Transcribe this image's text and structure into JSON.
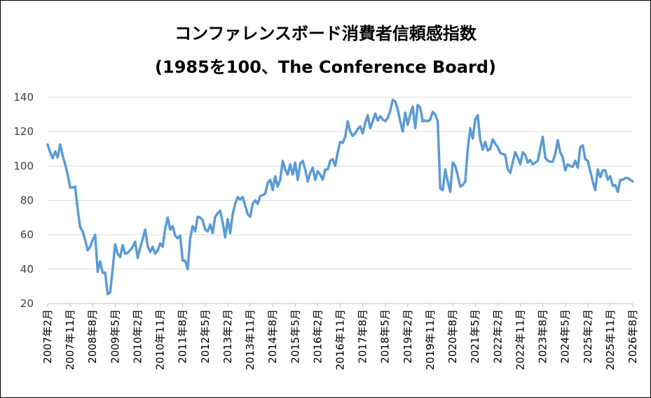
{
  "chart_data": {
    "type": "line",
    "title": "コンファレンスボード消費者信頼感指数",
    "subtitle": "(1985を100、The Conference Board)",
    "ylim": [
      20,
      140
    ],
    "yticks": [
      20,
      40,
      60,
      80,
      100,
      120,
      140
    ],
    "grid": true,
    "line_color": "#5B9BD5",
    "xtick_labels": [
      "2007年2月",
      "2007年11月",
      "2008年8月",
      "2009年5月",
      "2010年2月",
      "2010年11月",
      "2011年8月",
      "2012年5月",
      "2013年2月",
      "2013年11月",
      "2014年8月",
      "2015年5月",
      "2016年2月",
      "2016年11月",
      "2017年8月",
      "2018年5月",
      "2019年2月",
      "2019年11月",
      "2020年8月",
      "2021年5月",
      "2022年2月",
      "2022年11月",
      "2023年8月",
      "2024年5月",
      "2025年2月",
      "2025年11月",
      "2026年8月"
    ],
    "values": [
      112.5,
      108,
      104.5,
      108.5,
      105,
      112.5,
      106,
      101,
      95,
      87.5,
      87.5,
      88,
      75,
      64.5,
      62,
      57,
      51,
      53,
      57,
      60,
      38.5,
      44.5,
      38,
      38,
      25.5,
      26.5,
      40,
      54.5,
      49,
      47,
      54,
      49,
      49.5,
      51,
      53,
      56,
      46.5,
      52.5,
      57.5,
      63,
      53.5,
      50,
      53,
      49,
      51,
      55,
      53,
      63.5,
      70,
      63,
      65,
      59.5,
      58,
      59.5,
      45,
      45,
      40,
      58,
      65,
      62,
      70.5,
      70,
      68.5,
      63,
      62,
      66,
      61,
      70.5,
      72.5,
      74,
      67,
      58.5,
      69,
      61,
      72,
      78,
      82,
      80.5,
      82,
      77,
      72,
      70.5,
      78,
      80,
      78,
      82.5,
      83,
      84,
      90,
      92,
      86,
      94,
      88,
      92,
      103,
      98,
      95,
      101,
      95,
      102,
      92,
      101.5,
      103,
      98,
      91,
      96,
      99,
      92,
      97,
      95,
      92,
      98,
      98,
      103,
      104,
      100,
      108,
      114,
      113.5,
      117,
      126,
      120,
      117.5,
      119,
      121.5,
      123,
      119,
      125,
      129.5,
      122,
      126,
      130.5,
      126.5,
      129,
      127,
      126,
      128,
      132,
      138.5,
      137.5,
      133,
      126,
      120,
      131,
      124,
      130,
      134.5,
      122,
      135.5,
      134,
      126,
      126.5,
      126,
      127,
      131.5,
      130,
      126,
      87,
      86,
      98,
      91,
      85,
      102,
      100,
      94.5,
      88,
      89,
      91,
      110,
      122,
      116,
      127,
      129.5,
      115,
      109.5,
      114,
      109,
      110,
      115.5,
      113,
      111,
      107.5,
      107,
      106.5,
      98,
      96,
      102,
      108,
      105,
      101,
      108,
      106.5,
      102,
      103.5,
      101,
      102,
      103,
      110,
      117,
      105,
      103,
      102.5,
      102.5,
      107,
      115,
      108,
      105,
      97.5,
      101,
      100,
      99.5,
      103,
      99,
      111,
      112,
      104,
      103,
      97,
      91,
      86,
      98,
      93.5,
      97.5,
      97.5,
      92,
      94,
      88.5,
      89,
      85,
      92,
      92,
      93,
      93,
      92,
      91
    ]
  }
}
